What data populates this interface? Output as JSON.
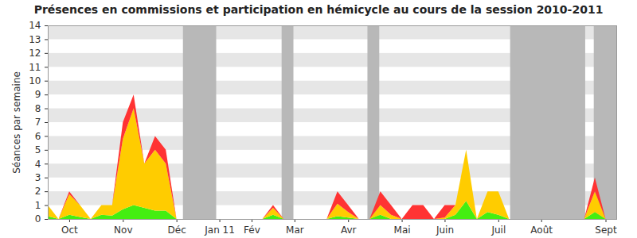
{
  "chart_data": {
    "type": "area",
    "title": "Présences en commissions et participation en hémicycle au cours de la session 2010-2011",
    "y_label": "Séances par semaine",
    "stacked": true,
    "grid": true,
    "ylim": [
      0,
      14
    ],
    "yticks": [
      0,
      1,
      2,
      3,
      4,
      5,
      6,
      7,
      8,
      9,
      10,
      11,
      12,
      13,
      14
    ],
    "categories": [
      null,
      null,
      "Oct",
      null,
      null,
      null,
      null,
      "Nov",
      null,
      null,
      null,
      null,
      "Déc",
      null,
      null,
      null,
      "Jan 11",
      null,
      null,
      "Fév",
      null,
      null,
      null,
      "Mar",
      null,
      null,
      null,
      null,
      "Avr",
      null,
      null,
      null,
      null,
      "Mai",
      null,
      null,
      null,
      "Juin",
      null,
      null,
      null,
      null,
      "Juil",
      null,
      null,
      null,
      "Août",
      null,
      null,
      null,
      null,
      null,
      "Sept",
      null
    ],
    "shaded_weeks": [
      [
        12.6,
        15.7
      ],
      [
        21.8,
        22.9
      ],
      [
        29.8,
        30.9
      ],
      [
        43.1,
        50.1
      ],
      [
        50.9,
        53
      ]
    ],
    "series": [
      {
        "color": "#44ee11",
        "values": [
          0.2,
          0,
          0.3,
          0.15,
          0,
          0.3,
          0.25,
          0.7,
          1,
          0.8,
          0.6,
          0.6,
          0,
          0,
          0,
          0,
          0,
          0,
          0,
          0,
          0,
          0.3,
          0,
          0,
          0,
          0,
          0,
          0.2,
          0.1,
          0,
          0,
          0.3,
          0,
          0,
          0,
          0,
          0,
          0,
          0.3,
          1.3,
          0,
          0.5,
          0.3,
          0,
          0,
          0,
          0,
          0,
          0,
          0,
          0,
          0.5,
          0,
          0
        ]
      },
      {
        "color": "#ffcc00",
        "values": [
          0.8,
          0,
          1.5,
          0.85,
          0,
          0.7,
          0.75,
          5.1,
          7,
          3.2,
          4.4,
          3.4,
          0,
          0,
          0,
          0,
          0,
          0,
          0,
          0,
          0,
          0.5,
          0,
          0,
          0,
          0,
          0,
          0.9,
          0.4,
          0,
          0,
          0.7,
          0.3,
          0,
          0,
          0,
          0,
          0.1,
          0.7,
          3.7,
          0,
          1.5,
          1.7,
          0,
          0,
          0,
          0,
          0,
          0,
          0,
          0,
          1.5,
          0,
          0
        ]
      },
      {
        "color": "#ff3333",
        "values": [
          0,
          0,
          0.2,
          0,
          0,
          0,
          0,
          1.2,
          1,
          0,
          1,
          1,
          0,
          0,
          0,
          0,
          0,
          0,
          0,
          0,
          0,
          0.2,
          0,
          0,
          0,
          0,
          0,
          0.9,
          0.5,
          0,
          0,
          1,
          0.7,
          0,
          1,
          1,
          0,
          0.9,
          0,
          0,
          0,
          0,
          0,
          0,
          0,
          0,
          0,
          0,
          0,
          0,
          0,
          1,
          0,
          0
        ]
      }
    ]
  }
}
